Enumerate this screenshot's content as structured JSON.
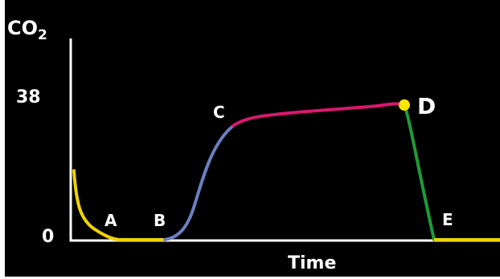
{
  "diagram": {
    "y_axis_label_main": "CO",
    "y_axis_label_sub": "2",
    "y_tick_high": "38",
    "y_tick_low": "0",
    "x_axis_label": "Time",
    "points": {
      "a": "A",
      "b": "B",
      "c": "C",
      "d": "D",
      "e": "E"
    },
    "colors": {
      "background": "#000000",
      "axis": "#ffffff",
      "text": "#ffffff",
      "segment_baseline": "#f2d200",
      "segment_b_to_c": "#6b7fc0",
      "segment_c_to_d": "#d8186e",
      "segment_d_to_e": "#1f9a3a",
      "marker_d": "#ffe600"
    }
  }
}
